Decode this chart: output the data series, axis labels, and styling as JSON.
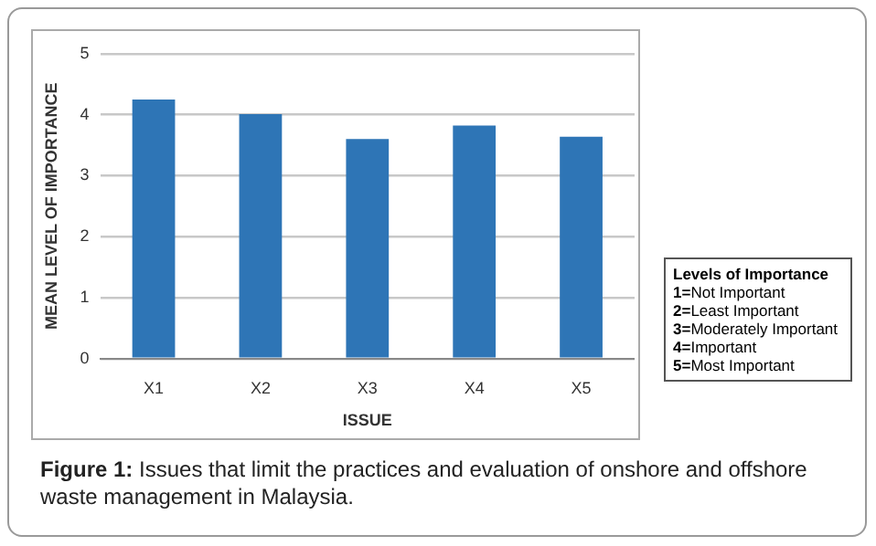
{
  "chart_data": {
    "type": "bar",
    "xlabel": "ISSUE",
    "ylabel": "MEAN LEVEL OF IMPORTANCE",
    "categories": [
      "X1",
      "X2",
      "X3",
      "X4",
      "X5"
    ],
    "values": [
      4.25,
      4.01,
      3.6,
      3.82,
      3.64
    ],
    "color": "#2e75b6",
    "ylim": [
      0,
      5
    ],
    "yticks": [
      0,
      1,
      2,
      3,
      4,
      5
    ],
    "grid": "y",
    "legend": false,
    "annotations": [
      "Levels of Importance",
      "1=Not Important",
      "2=Least Important",
      "3=Moderately Important",
      "4=Important",
      "5=Most Important",
      "Figure 1: Issues that limit the practices and evaluation of onshore and offshore waste management in Malaysia."
    ]
  }
}
